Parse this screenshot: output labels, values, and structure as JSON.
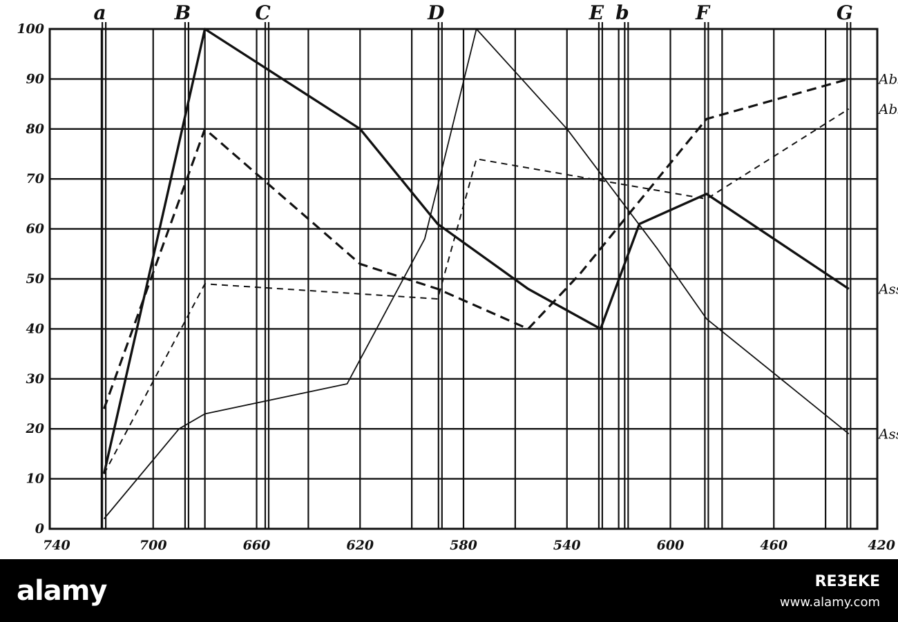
{
  "chart_data": {
    "type": "line",
    "title": "",
    "xlabel": "",
    "ylabel": "",
    "ylim": [
      0,
      100
    ],
    "grid": true,
    "y_ticks": [
      0,
      10,
      20,
      30,
      40,
      50,
      60,
      70,
      80,
      90,
      100
    ],
    "x_ticks": [
      "740",
      "700",
      "660",
      "620",
      "580",
      "540",
      "600",
      "460",
      "420"
    ],
    "fraunhofer_lines": [
      {
        "label": "a",
        "x": 719
      },
      {
        "label": "B",
        "x": 687
      },
      {
        "label": "C",
        "x": 656
      },
      {
        "label": "D",
        "x": 589
      },
      {
        "label": "E",
        "x": 527
      },
      {
        "label": "b",
        "x": 517
      },
      {
        "label": "F",
        "x": 486
      },
      {
        "label": "G",
        "x": 431
      }
    ],
    "series": [
      {
        "name": "Abs",
        "style": "dashed-thick",
        "x": [
          719,
          680,
          620,
          590,
          555,
          535,
          486,
          431
        ],
        "y": [
          24,
          80,
          53,
          48,
          40,
          51,
          82,
          90
        ]
      },
      {
        "name": "Abs",
        "style": "dashed-thin",
        "x": [
          719,
          680,
          590,
          575,
          486,
          431
        ],
        "y": [
          11,
          49,
          46,
          74,
          66,
          84
        ]
      },
      {
        "name": "Ass",
        "style": "solid-thick",
        "x": [
          719,
          680,
          620,
          590,
          555,
          527,
          512,
          486,
          431
        ],
        "y": [
          11,
          100,
          80,
          61,
          48,
          40,
          61,
          67,
          48
        ]
      },
      {
        "name": "Ass",
        "style": "solid-thin",
        "x": [
          719,
          690,
          680,
          625,
          595,
          575,
          540,
          505,
          486,
          431
        ],
        "y": [
          2,
          20,
          23,
          29,
          58,
          100,
          80,
          56,
          42,
          19
        ]
      }
    ]
  },
  "footer": {
    "watermark": "alamy",
    "image_id": "RE3EKE",
    "site": "www.alamy.com"
  }
}
